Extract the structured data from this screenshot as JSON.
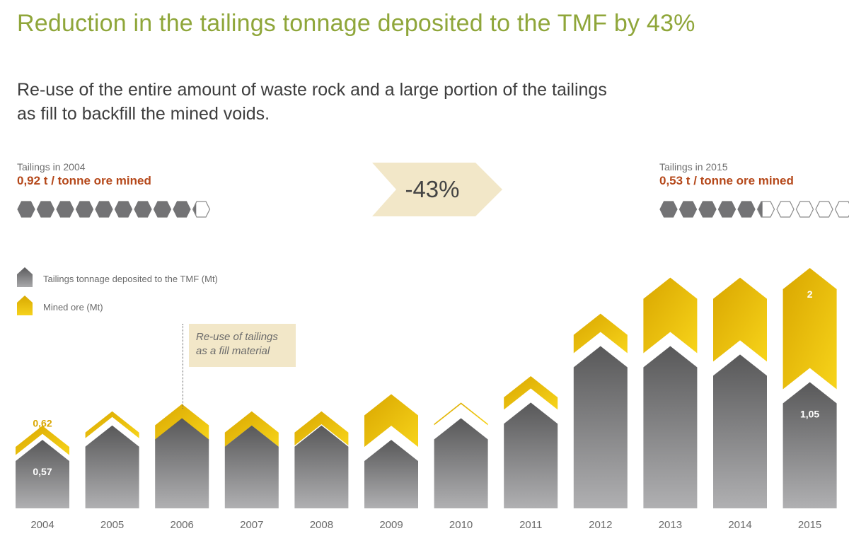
{
  "header": {
    "title": "Reduction in the tailings tonnage deposited to the TMF by 43%",
    "subtitle_line1": "Re-use of the entire amount of waste rock and a large portion of the tailings",
    "subtitle_line2": "as fill to backfill the mined voids."
  },
  "left_stat": {
    "label": "Tailings in 2004",
    "value": "0,92 t / tonne ore mined",
    "hexagons_filled": 9.2,
    "hexagons_total": 10
  },
  "right_stat": {
    "label": "Tailings in 2015",
    "value": "0,53 t / tonne ore mined",
    "hexagons_filled": 5.3,
    "hexagons_total": 10
  },
  "change_badge": {
    "text": "-43%"
  },
  "annotation": {
    "line1": "Re-use of tailings",
    "line2": "as a fill material",
    "year": "2006"
  },
  "colors": {
    "title": "#8fa63a",
    "highlight": "#b5481a",
    "gray_series": "#7a7a7c",
    "gold_series": "#e6b800",
    "badge": "#f2e7c8"
  },
  "chart_data": {
    "type": "bar",
    "categories": [
      "2004",
      "2005",
      "2006",
      "2007",
      "2008",
      "2009",
      "2010",
      "2011",
      "2012",
      "2013",
      "2014",
      "2015"
    ],
    "series": [
      {
        "name": "Tailings tonnage deposited to the TMF (Mt)",
        "icon": "gray-pentagon-icon",
        "values": [
          0.57,
          0.69,
          0.75,
          0.69,
          0.69,
          0.57,
          0.75,
          0.88,
          1.35,
          1.35,
          1.28,
          1.05
        ]
      },
      {
        "name": "Mined ore (Mt)",
        "icon": "gold-pentagon-icon",
        "values": [
          0.62,
          0.76,
          0.74,
          0.69,
          0.7,
          0.95,
          0.88,
          1.1,
          1.62,
          1.92,
          1.92,
          2.0
        ]
      }
    ],
    "data_labels": [
      {
        "category": "2004",
        "series": "Mined ore (Mt)",
        "text": "0,62"
      },
      {
        "category": "2004",
        "series": "Tailings tonnage deposited to the TMF (Mt)",
        "text": "0,57"
      },
      {
        "category": "2015",
        "series": "Mined ore (Mt)",
        "text": "2"
      },
      {
        "category": "2015",
        "series": "Tailings tonnage deposited to the TMF (Mt)",
        "text": "1,05"
      }
    ],
    "ylim": [
      0,
      2.2
    ],
    "grid": false
  }
}
